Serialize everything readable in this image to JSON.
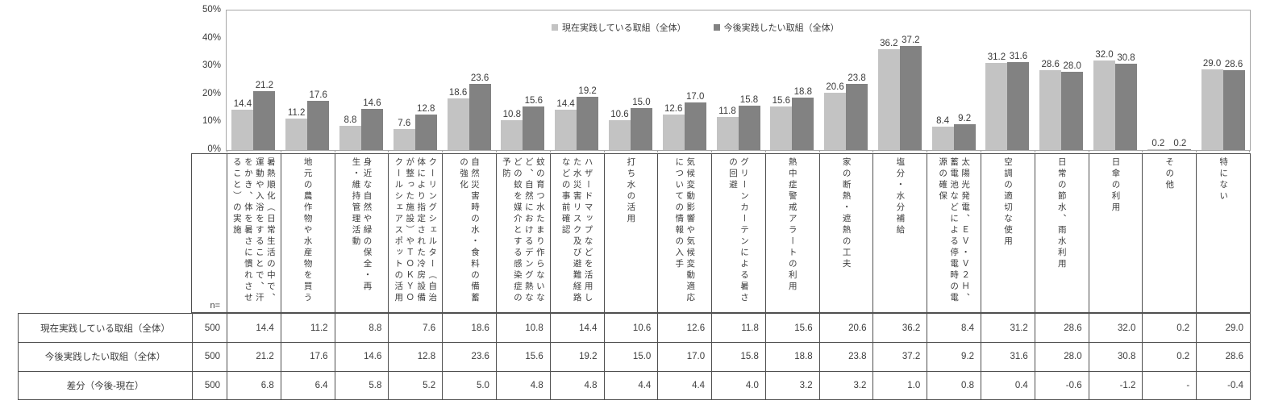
{
  "chart_data": {
    "type": "bar",
    "title": "",
    "xlabel": "",
    "ylabel": "",
    "ylim": [
      0,
      50
    ],
    "ytick_labels": [
      "0%",
      "10%",
      "20%",
      "30%",
      "40%",
      "50%"
    ],
    "grid": false,
    "legend_position": "top-center",
    "bar_colors": {
      "series1": "#c3c3c3",
      "series2": "#828282"
    },
    "categories": [
      "暑熱順化（日常生活の中で、運動や入浴をすることで、汗をかき、体を暑さに慣れさせること）の実施",
      "地元の農作物や水産物を買う",
      "身近な自然や緑の保全・再生・維持管理活動",
      "クーリングシェルター（自治体により指定された冷房設備が整った施設）やＴＯＫＹＯクールシェアスポットの活用",
      "自然災害時の水・食料の備蓄の強化",
      "蚊の育つ水たまり作らないなど、自然におけるデング熱などの蚊を媒介とする感染症の予防",
      "ハザードマップなどを活用した水災害リスク及び避難経路などの事前確認",
      "打ち水の活用",
      "気候変動影響や気候変動適応についての情報の入手",
      "グリーンカーテンによる暑さの回避",
      "熱中症警戒アラートの利用",
      "家の断熱・遮熱の工夫",
      "塩分・水分補給",
      "太陽光発電、ＥＶ・Ｖ２Ｈ、蓄電池などによる停電時の電源の確保",
      "空調の適切な使用",
      "日常の節水、雨水利用",
      "日傘の利用",
      "その他",
      "特にない"
    ],
    "series": [
      {
        "name": "現在実践している取組（全体）",
        "color": "#c3c3c3",
        "values": [
          14.4,
          11.2,
          8.8,
          7.6,
          18.6,
          10.8,
          14.4,
          10.6,
          12.6,
          11.8,
          15.6,
          20.6,
          36.2,
          8.4,
          31.2,
          28.6,
          32.0,
          0.2,
          29.0
        ]
      },
      {
        "name": "今後実践したい取組（全体）",
        "color": "#828282",
        "values": [
          21.2,
          17.6,
          14.6,
          12.8,
          23.6,
          15.6,
          19.2,
          15.0,
          17.0,
          15.8,
          18.8,
          23.8,
          37.2,
          9.2,
          31.6,
          28.0,
          30.8,
          0.2,
          28.6
        ]
      }
    ]
  },
  "table": {
    "n_label": "n=",
    "rows": [
      {
        "label": "現在実践している取組（全体）",
        "n": "500",
        "values": [
          "14.4",
          "11.2",
          "8.8",
          "7.6",
          "18.6",
          "10.8",
          "14.4",
          "10.6",
          "12.6",
          "11.8",
          "15.6",
          "20.6",
          "36.2",
          "8.4",
          "31.2",
          "28.6",
          "32.0",
          "0.2",
          "29.0"
        ]
      },
      {
        "label": "今後実践したい取組（全体）",
        "n": "500",
        "values": [
          "21.2",
          "17.6",
          "14.6",
          "12.8",
          "23.6",
          "15.6",
          "19.2",
          "15.0",
          "17.0",
          "15.8",
          "18.8",
          "23.8",
          "37.2",
          "9.2",
          "31.6",
          "28.0",
          "30.8",
          "0.2",
          "28.6"
        ]
      },
      {
        "label": "差分（今後-現在）",
        "n": "500",
        "values": [
          "6.8",
          "6.4",
          "5.8",
          "5.2",
          "5.0",
          "4.8",
          "4.8",
          "4.4",
          "4.4",
          "4.0",
          "3.2",
          "3.2",
          "1.0",
          "0.8",
          "0.4",
          "-0.6",
          "-1.2",
          "-",
          "-0.4"
        ]
      }
    ]
  }
}
